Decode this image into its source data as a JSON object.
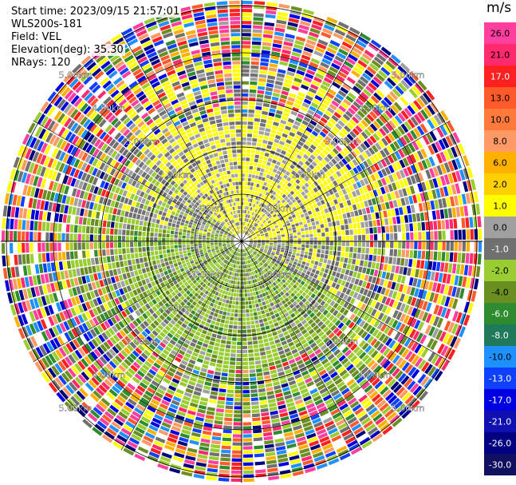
{
  "header": {
    "start_time": "Start time: 2023/09/15 21:57:01",
    "instrument": "WLS200s-181",
    "field": "Field: VEL",
    "elevation": "Elevation(deg): 35.30",
    "nrays": "NRays: 120"
  },
  "chart_data": {
    "type": "polar-ppi",
    "field": "VEL",
    "units": "m/s",
    "range_rings_km": [
      1.0,
      2.0,
      3.0,
      4.0,
      5.0
    ],
    "range_ring_labels": [
      "1.00km",
      "2.00km",
      "3.00km",
      "4.00km",
      "5.00km"
    ],
    "rays": 120,
    "elevation_deg": 35.3,
    "colorbar": {
      "ticks": [
        "26.0",
        "21.0",
        "17.0",
        "13.0",
        "10.0",
        "8.0",
        "6.0",
        "2.0",
        "1.0",
        "0.0",
        "-1.0",
        "-2.0",
        "-4.0",
        "-6.0",
        "-8.0",
        "-10.0",
        "-13.0",
        "-17.0",
        "-21.0",
        "-26.0",
        "-30.0"
      ],
      "colors": [
        "#ff3fa0",
        "#ff2a6e",
        "#ff2020",
        "#ff5a2a",
        "#ff7a3c",
        "#ff9a66",
        "#ffb000",
        "#ffd000",
        "#ffff00",
        "#a0a0a0",
        "#707070",
        "#9acd32",
        "#6b8e23",
        "#2e8b2e",
        "#1e7a5a",
        "#1e90ff",
        "#1040ff",
        "#0000e0",
        "#1010b0",
        "#000080",
        "#101060"
      ]
    }
  }
}
